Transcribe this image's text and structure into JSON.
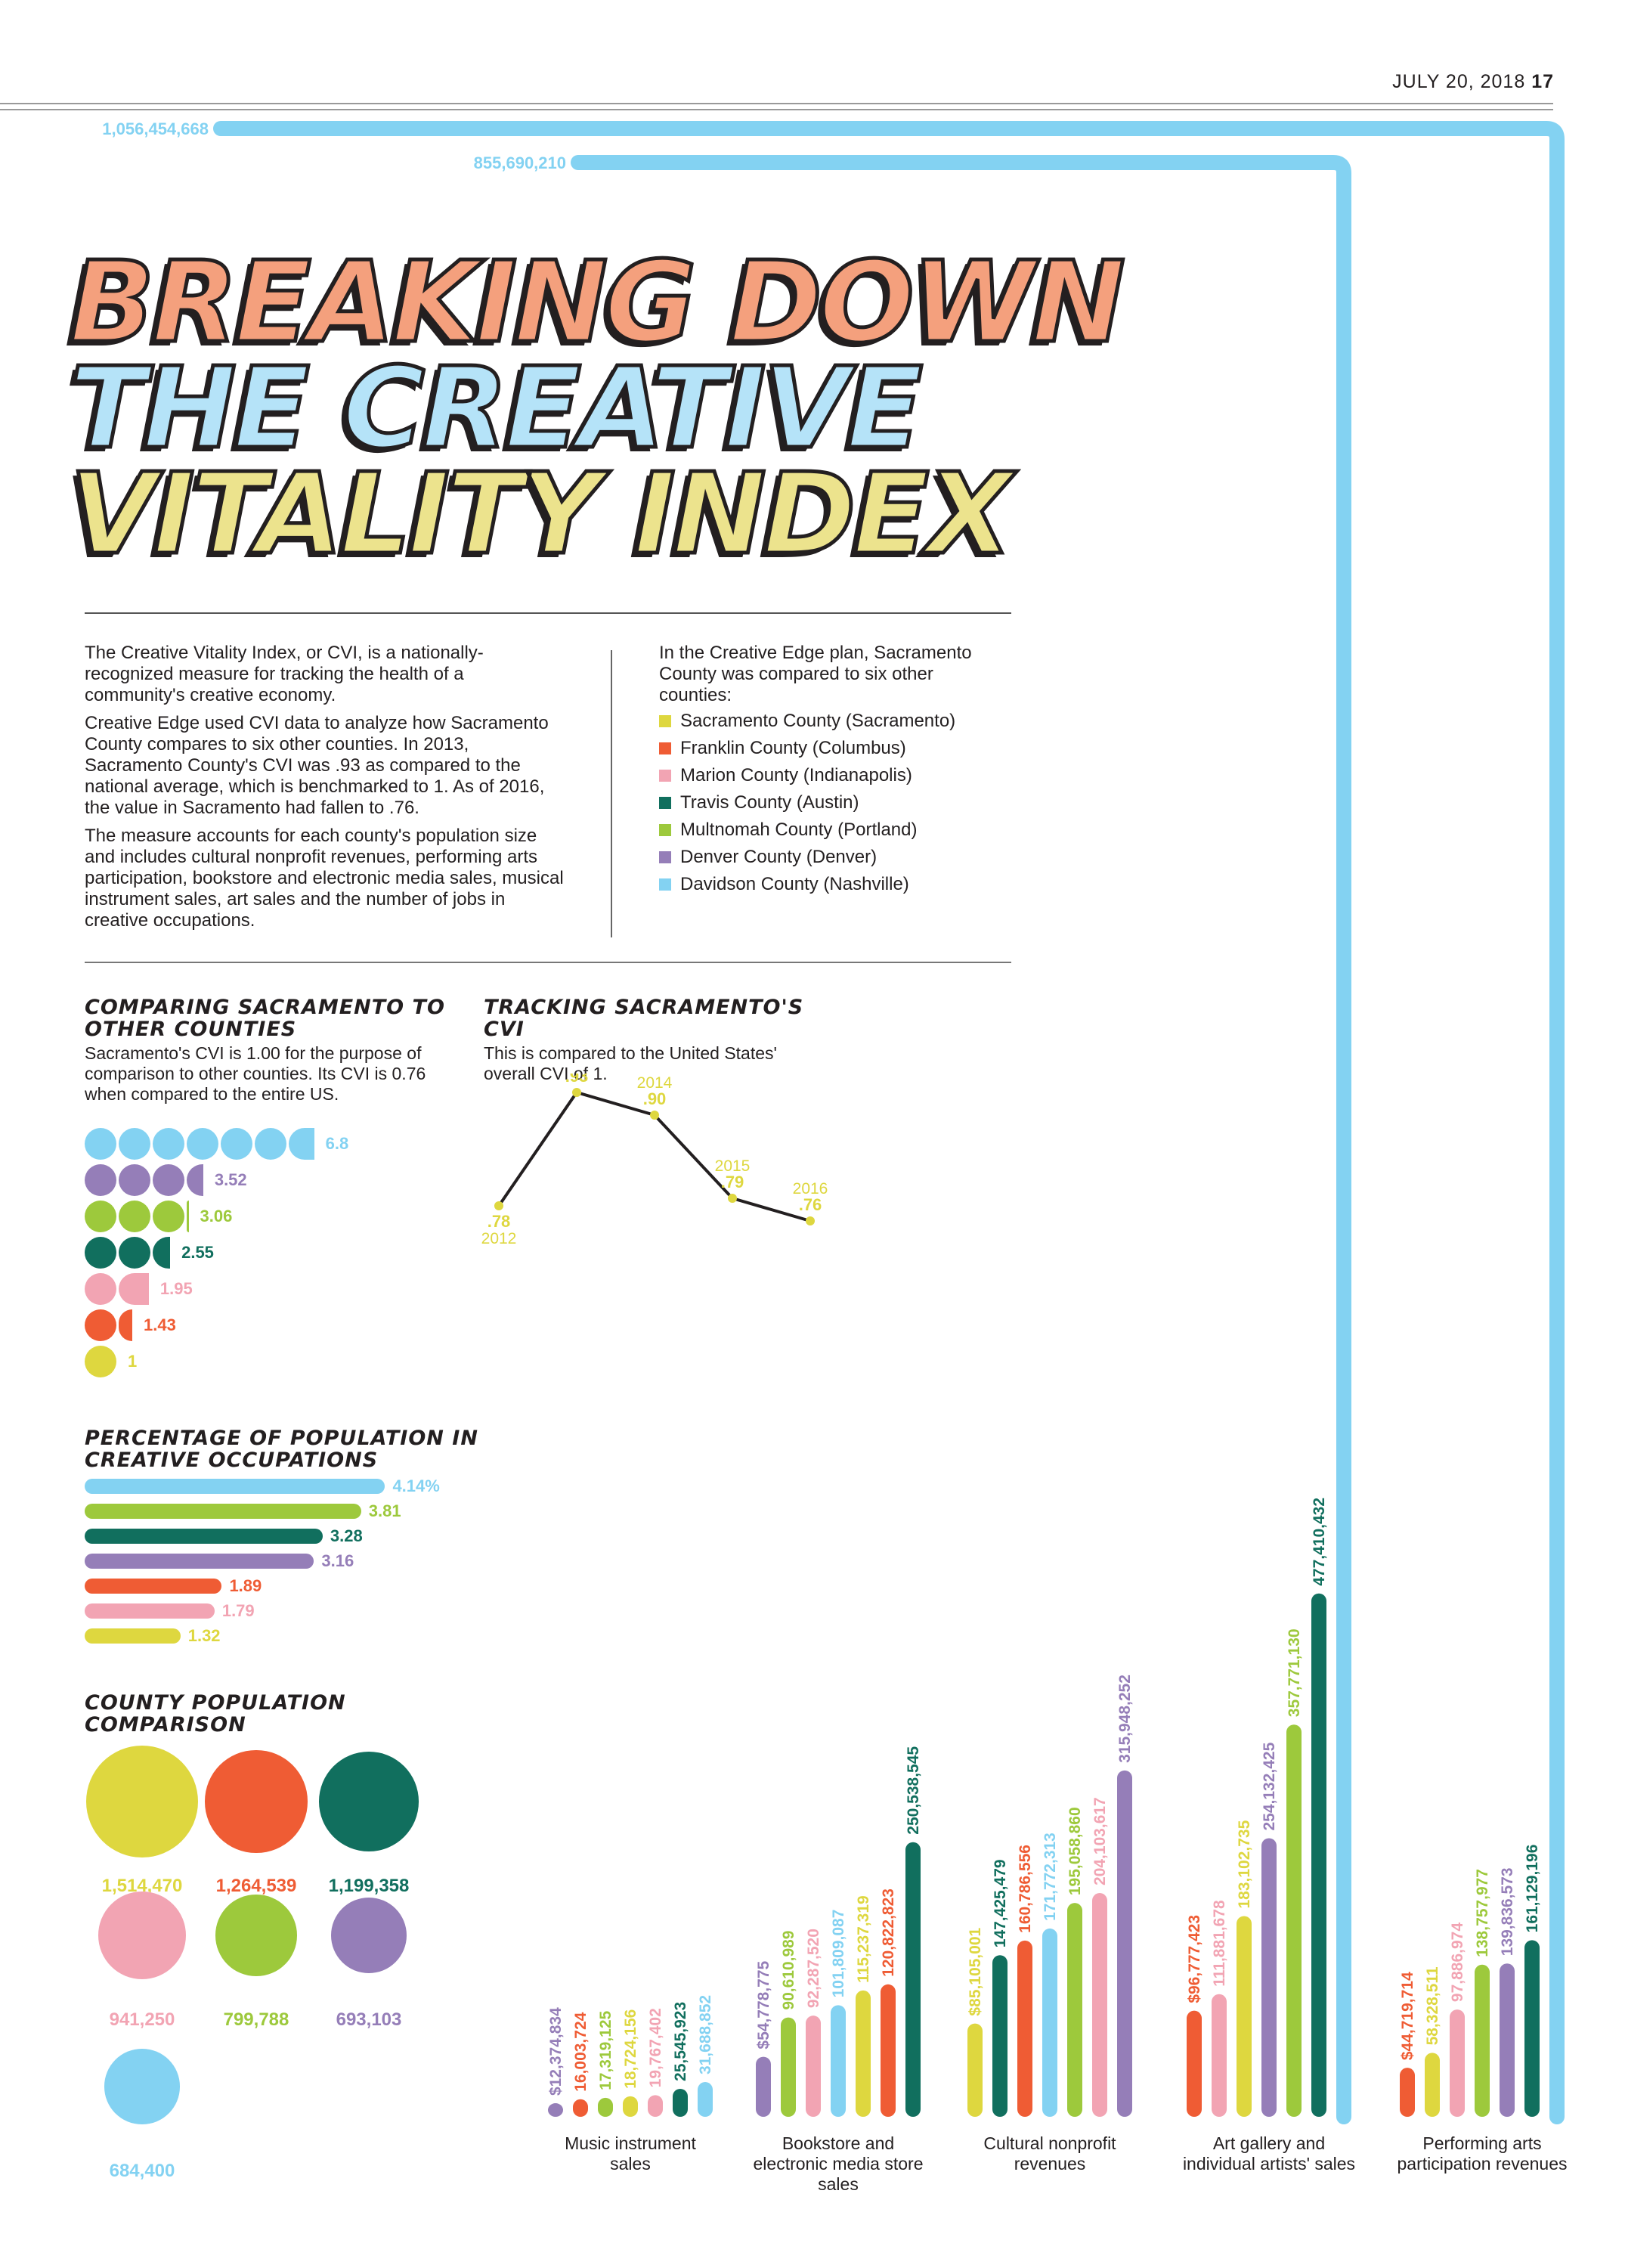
{
  "header": {
    "date": "JULY 20, 2018",
    "page": "17"
  },
  "headline": [
    {
      "text": "BREAKING DOWN",
      "color": "#f4a07d"
    },
    {
      "text": "THE CREATIVE",
      "color": "#b5e3f8"
    },
    {
      "text": "VITALITY INDEX",
      "color": "#ece38d"
    }
  ],
  "intro": [
    "The Creative Vitality Index, or CVI, is a nationally-recognized measure for tracking the health of a community's creative economy.",
    "Creative Edge used CVI data to analyze how Sacramento County compares to six other counties. In 2013, Sacramento County's CVI was .93 as compared to the national average, which is benchmarked to 1. As of 2016, the value in Sacramento had fallen to .76.",
    "The measure accounts for each county's population size and includes cultural nonprofit revenues, performing arts participation, bookstore and electronic media sales, musical instrument sales, art sales and the number of jobs in creative occupations."
  ],
  "legend": {
    "intro": "In the Creative Edge plan, Sacramento County was compared to six other counties:",
    "items": [
      {
        "label": "Sacramento County (Sacramento)",
        "color": "#ded73f"
      },
      {
        "label": "Franklin County (Columbus)",
        "color": "#ef5c34"
      },
      {
        "label": "Marion County (Indianapolis)",
        "color": "#f2a4b3"
      },
      {
        "label": "Travis County (Austin)",
        "color": "#116f5e"
      },
      {
        "label": "Multnomah County (Portland)",
        "color": "#9dc93c"
      },
      {
        "label": "Denver County (Denver)",
        "color": "#957eb8"
      },
      {
        "label": "Davidson County (Nashville)",
        "color": "#83d2f2"
      }
    ]
  },
  "compare": {
    "title": "COMPARING SACRAMENTO TO OTHER COUNTIES",
    "subtitle": "Sacramento's CVI is 1.00 for the purpose of comparison to other counties. Its CVI is 0.76 when compared to the entire US."
  },
  "tracking": {
    "title": "TRACKING SACRAMENTO'S CVI",
    "subtitle": "This is compared to the United States' overall CVI of 1."
  },
  "pct": {
    "title": "PERCENTAGE OF POPULATION IN CREATIVE OCCUPATIONS"
  },
  "pop": {
    "title": "COUNTY POPULATION COMPARISON"
  },
  "chart_data": [
    {
      "type": "bar",
      "title": "COMPARING SACRAMENTO TO OTHER COUNTIES",
      "categories": [
        "Davidson County (Nashville)",
        "Denver County (Denver)",
        "Multnomah County (Portland)",
        "Travis County (Austin)",
        "Marion County (Indianapolis)",
        "Franklin County (Columbus)",
        "Sacramento County (Sacramento)"
      ],
      "labels": [
        "6.8",
        "3.52",
        "3.06",
        "2.55",
        "1.95",
        "1.43",
        "1"
      ],
      "values": [
        6.8,
        3.52,
        3.06,
        2.55,
        1.95,
        1.43,
        1
      ],
      "colors": [
        "#83d2f2",
        "#957eb8",
        "#9dc93c",
        "#116f5e",
        "#f2a4b3",
        "#ef5c34",
        "#ded73f"
      ]
    },
    {
      "type": "line",
      "title": "TRACKING SACRAMENTO'S CVI",
      "x": [
        "2012",
        "2013",
        "2014",
        "2015",
        "2016"
      ],
      "labels": [
        ".78",
        ".93",
        ".90",
        ".79",
        ".76"
      ],
      "y": [
        0.78,
        0.93,
        0.9,
        0.79,
        0.76
      ],
      "color": "#ded73f"
    },
    {
      "type": "bar",
      "title": "PERCENTAGE OF POPULATION IN CREATIVE OCCUPATIONS",
      "categories": [
        "Davidson County (Nashville)",
        "Multnomah County (Portland)",
        "Travis County (Austin)",
        "Denver County (Denver)",
        "Franklin County (Columbus)",
        "Marion County (Indianapolis)",
        "Sacramento County (Sacramento)"
      ],
      "labels": [
        "4.14%",
        "3.81",
        "3.28",
        "3.16",
        "1.89",
        "1.79",
        "1.32"
      ],
      "values": [
        4.14,
        3.81,
        3.28,
        3.16,
        1.89,
        1.79,
        1.32
      ],
      "colors": [
        "#83d2f2",
        "#9dc93c",
        "#116f5e",
        "#957eb8",
        "#ef5c34",
        "#f2a4b3",
        "#ded73f"
      ]
    },
    {
      "type": "bubble",
      "title": "COUNTY POPULATION COMPARISON",
      "categories": [
        "Sacramento County (Sacramento)",
        "Franklin County (Columbus)",
        "Travis County (Austin)",
        "Marion County (Indianapolis)",
        "Multnomah County (Portland)",
        "Denver County (Denver)",
        "Davidson County (Nashville)"
      ],
      "labels": [
        "1,514,470",
        "1,264,539",
        "1,199,358",
        "941,250",
        "799,788",
        "693,103",
        "684,400"
      ],
      "values": [
        1514470,
        1264539,
        1199358,
        941250,
        799788,
        693103,
        684400
      ],
      "colors": [
        "#ded73f",
        "#ef5c34",
        "#116f5e",
        "#f2a4b3",
        "#9dc93c",
        "#957eb8",
        "#83d2f2"
      ]
    },
    {
      "type": "bar",
      "groups": [
        {
          "label": "Music instrument sales",
          "bars": [
            {
              "county": "Denver County (Denver)",
              "value": 12374834,
              "label": "$12,374,834",
              "color": "#957eb8"
            },
            {
              "county": "Franklin County (Columbus)",
              "value": 16003724,
              "label": "16,003,724",
              "color": "#ef5c34"
            },
            {
              "county": "Multnomah County (Portland)",
              "value": 17319125,
              "label": "17,319,125",
              "color": "#9dc93c"
            },
            {
              "county": "Sacramento County (Sacramento)",
              "value": 18724156,
              "label": "18,724,156",
              "color": "#ded73f"
            },
            {
              "county": "Marion County (Indianapolis)",
              "value": 19767402,
              "label": "19,767,402",
              "color": "#f2a4b3"
            },
            {
              "county": "Travis County (Austin)",
              "value": 25545923,
              "label": "25,545,923",
              "color": "#116f5e"
            },
            {
              "county": "Davidson County (Nashville)",
              "value": 31688852,
              "label": "31,688,852",
              "color": "#83d2f2"
            }
          ]
        },
        {
          "label": "Bookstore and electronic media store sales",
          "bars": [
            {
              "county": "Denver County (Denver)",
              "value": 54778775,
              "label": "$54,778,775",
              "color": "#957eb8"
            },
            {
              "county": "Multnomah County (Portland)",
              "value": 90610989,
              "label": "90,610,989",
              "color": "#9dc93c"
            },
            {
              "county": "Marion County (Indianapolis)",
              "value": 92287520,
              "label": "92,287,520",
              "color": "#f2a4b3"
            },
            {
              "county": "Davidson County (Nashville)",
              "value": 101809087,
              "label": "101,809,087",
              "color": "#83d2f2"
            },
            {
              "county": "Sacramento County (Sacramento)",
              "value": 115237319,
              "label": "115,237,319",
              "color": "#ded73f"
            },
            {
              "county": "Franklin County (Columbus)",
              "value": 120822823,
              "label": "120,822,823",
              "color": "#ef5c34"
            },
            {
              "county": "Travis County (Austin)",
              "value": 250538545,
              "label": "250,538,545",
              "color": "#116f5e"
            }
          ]
        },
        {
          "label": "Cultural nonprofit revenues",
          "bars": [
            {
              "county": "Sacramento County (Sacramento)",
              "value": 85105001,
              "label": "$85,105,001",
              "color": "#ded73f"
            },
            {
              "county": "Travis County (Austin)",
              "value": 147425479,
              "label": "147,425,479",
              "color": "#116f5e"
            },
            {
              "county": "Franklin County (Columbus)",
              "value": 160786556,
              "label": "160,786,556",
              "color": "#ef5c34"
            },
            {
              "county": "Davidson County (Nashville)",
              "value": 171772313,
              "label": "171,772,313",
              "color": "#83d2f2"
            },
            {
              "county": "Multnomah County (Portland)",
              "value": 195058860,
              "label": "195,058,860",
              "color": "#9dc93c"
            },
            {
              "county": "Marion County (Indianapolis)",
              "value": 204103617,
              "label": "204,103,617",
              "color": "#f2a4b3"
            },
            {
              "county": "Denver County (Denver)",
              "value": 315948252,
              "label": "315,948,252",
              "color": "#957eb8"
            }
          ]
        },
        {
          "label": "Art gallery and individual artists' sales",
          "bars": [
            {
              "county": "Franklin County (Columbus)",
              "value": 96777423,
              "label": "$96,777,423",
              "color": "#ef5c34"
            },
            {
              "county": "Marion County (Indianapolis)",
              "value": 111881678,
              "label": "111,881,678",
              "color": "#f2a4b3"
            },
            {
              "county": "Sacramento County (Sacramento)",
              "value": 183102735,
              "label": "183,102,735",
              "color": "#ded73f"
            },
            {
              "county": "Denver County (Denver)",
              "value": 254132425,
              "label": "254,132,425",
              "color": "#957eb8"
            },
            {
              "county": "Multnomah County (Portland)",
              "value": 357771130,
              "label": "357,771,130",
              "color": "#9dc93c"
            },
            {
              "county": "Travis County (Austin)",
              "value": 477410432,
              "label": "477,410,432",
              "color": "#116f5e"
            },
            {
              "county": "Davidson County (Nashville)",
              "value": 855690210,
              "label": "855,690,210",
              "color": "#83d2f2",
              "overflow": true
            }
          ]
        },
        {
          "label": "Performing arts participation revenues",
          "bars": [
            {
              "county": "Franklin County (Columbus)",
              "value": 44719714,
              "label": "$44,719,714",
              "color": "#ef5c34"
            },
            {
              "county": "Sacramento County (Sacramento)",
              "value": 58328511,
              "label": "58,328,511",
              "color": "#ded73f"
            },
            {
              "county": "Marion County (Indianapolis)",
              "value": 97886974,
              "label": "97,886,974",
              "color": "#f2a4b3"
            },
            {
              "county": "Multnomah County (Portland)",
              "value": 138757977,
              "label": "138,757,977",
              "color": "#9dc93c"
            },
            {
              "county": "Denver County (Denver)",
              "value": 139836573,
              "label": "139,836,573",
              "color": "#957eb8"
            },
            {
              "county": "Travis County (Austin)",
              "value": 161129196,
              "label": "161,129,196",
              "color": "#116f5e"
            },
            {
              "county": "Davidson County (Nashville)",
              "value": 1056454668,
              "label": "1,056,454,668",
              "color": "#83d2f2",
              "overflow": true
            }
          ]
        }
      ]
    }
  ]
}
